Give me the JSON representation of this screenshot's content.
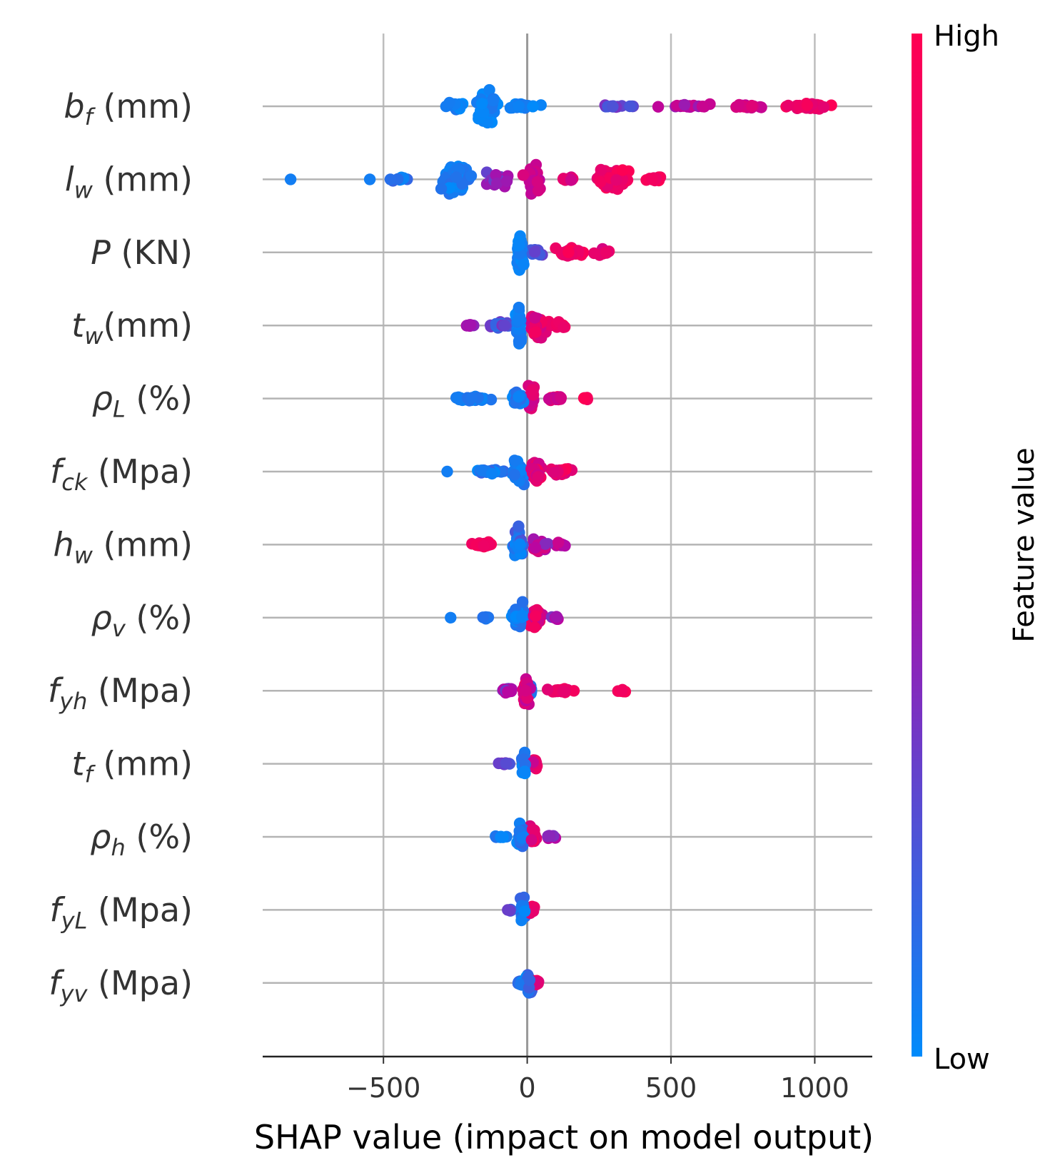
{
  "chart_data": {
    "type": "scatter",
    "subtype": "shap-beeswarm",
    "xlabel": "SHAP value (impact on model output)",
    "xticks": [
      -500,
      0,
      500,
      1000
    ],
    "xtick_labels": [
      "−500",
      "0",
      "500",
      "1000"
    ],
    "xlim": [
      -920,
      1200
    ],
    "vertical_gridlines": [
      -500,
      0,
      500,
      1000
    ],
    "colorbar": {
      "label": "Feature value",
      "high_label": "High",
      "low_label": "Low",
      "low_color": "#008bfb",
      "mid_color": "#b407a6",
      "high_color": "#ff0052"
    },
    "features": [
      {
        "main": "b",
        "sub": "f",
        "suffix": " (mm)",
        "clusters": [
          {
            "center": -140,
            "count": 70,
            "spread": 40,
            "vmin": 0.0,
            "vmax": 0.08,
            "height": 0.7
          },
          {
            "center": -240,
            "count": 16,
            "spread": 50,
            "vmin": 0.0,
            "vmax": 0.08,
            "height": 0.15
          },
          {
            "center": -20,
            "count": 24,
            "spread": 75,
            "vmin": 0.0,
            "vmax": 0.12,
            "height": 0.15
          },
          {
            "center": 300,
            "count": 16,
            "spread": 75,
            "vmin": 0.15,
            "vmax": 0.35,
            "height": 0.05
          },
          {
            "center": 580,
            "count": 16,
            "spread": 110,
            "vmin": 0.4,
            "vmax": 0.7,
            "height": 0.1
          },
          {
            "center": 760,
            "count": 14,
            "spread": 70,
            "vmin": 0.55,
            "vmax": 0.8,
            "height": 0.1
          },
          {
            "center": 980,
            "count": 40,
            "spread": 90,
            "vmin": 0.8,
            "vmax": 1.0,
            "height": 0.15
          }
        ]
      },
      {
        "main": "l",
        "sub": "w",
        "suffix": " (mm)",
        "clusters": [
          {
            "center": -820,
            "count": 1,
            "spread": 5,
            "vmin": 0.05,
            "vmax": 0.05,
            "height": 0.0
          },
          {
            "center": -550,
            "count": 1,
            "spread": 5,
            "vmin": 0.05,
            "vmax": 0.05,
            "height": 0.0
          },
          {
            "center": -450,
            "count": 8,
            "spread": 45,
            "vmin": 0.0,
            "vmax": 0.15,
            "height": 0.1
          },
          {
            "center": -250,
            "count": 85,
            "spread": 50,
            "vmin": 0.0,
            "vmax": 0.12,
            "height": 0.75
          },
          {
            "center": -100,
            "count": 30,
            "spread": 50,
            "vmin": 0.25,
            "vmax": 0.55,
            "height": 0.4
          },
          {
            "center": 20,
            "count": 40,
            "spread": 35,
            "vmin": 0.55,
            "vmax": 0.75,
            "height": 0.7
          },
          {
            "center": 140,
            "count": 10,
            "spread": 40,
            "vmin": 0.65,
            "vmax": 0.85,
            "height": 0.1
          },
          {
            "center": 300,
            "count": 75,
            "spread": 60,
            "vmin": 0.8,
            "vmax": 1.0,
            "height": 0.45
          },
          {
            "center": 450,
            "count": 12,
            "spread": 40,
            "vmin": 0.85,
            "vmax": 1.0,
            "height": 0.1
          }
        ]
      },
      {
        "main": "P",
        "sub": "",
        "suffix": "  (KN)",
        "clusters": [
          {
            "center": -25,
            "count": 55,
            "spread": 12,
            "vmin": 0.0,
            "vmax": 0.08,
            "height": 0.8
          },
          {
            "center": 30,
            "count": 16,
            "spread": 25,
            "vmin": 0.1,
            "vmax": 0.3,
            "height": 0.15
          },
          {
            "center": 150,
            "count": 40,
            "spread": 55,
            "vmin": 0.8,
            "vmax": 1.0,
            "height": 0.2
          },
          {
            "center": 270,
            "count": 14,
            "spread": 40,
            "vmin": 0.7,
            "vmax": 0.95,
            "height": 0.15
          }
        ]
      },
      {
        "main": "t",
        "sub": "w",
        "suffix": "(mm)",
        "clusters": [
          {
            "center": -200,
            "count": 8,
            "spread": 25,
            "vmin": 0.35,
            "vmax": 0.5,
            "height": 0.05
          },
          {
            "center": -90,
            "count": 20,
            "spread": 40,
            "vmin": 0.1,
            "vmax": 0.35,
            "height": 0.15
          },
          {
            "center": -30,
            "count": 40,
            "spread": 14,
            "vmin": 0.0,
            "vmax": 0.1,
            "height": 0.75
          },
          {
            "center": 40,
            "count": 45,
            "spread": 35,
            "vmin": 0.6,
            "vmax": 0.95,
            "height": 0.45
          },
          {
            "center": 110,
            "count": 18,
            "spread": 25,
            "vmin": 0.85,
            "vmax": 1.0,
            "height": 0.15
          }
        ]
      },
      {
        "main": "ρ",
        "sub": "L",
        "suffix": " (%)",
        "clusters": [
          {
            "center": -200,
            "count": 34,
            "spread": 70,
            "vmin": 0.0,
            "vmax": 0.1,
            "height": 0.12
          },
          {
            "center": -30,
            "count": 34,
            "spread": 30,
            "vmin": 0.0,
            "vmax": 0.15,
            "height": 0.3
          },
          {
            "center": 15,
            "count": 30,
            "spread": 12,
            "vmin": 0.6,
            "vmax": 0.85,
            "height": 0.7
          },
          {
            "center": 110,
            "count": 22,
            "spread": 45,
            "vmin": 0.55,
            "vmax": 1.0,
            "height": 0.12
          },
          {
            "center": 200,
            "count": 8,
            "spread": 15,
            "vmin": 0.9,
            "vmax": 1.0,
            "height": 0.05
          }
        ]
      },
      {
        "main": "f",
        "sub": "ck",
        "suffix": " (Mpa)",
        "clusters": [
          {
            "center": -280,
            "count": 1,
            "spread": 5,
            "vmin": 0.05,
            "vmax": 0.05,
            "height": 0.0
          },
          {
            "center": -130,
            "count": 26,
            "spread": 50,
            "vmin": 0.0,
            "vmax": 0.2,
            "height": 0.12
          },
          {
            "center": -30,
            "count": 40,
            "spread": 25,
            "vmin": 0.0,
            "vmax": 0.1,
            "height": 0.65
          },
          {
            "center": 30,
            "count": 36,
            "spread": 25,
            "vmin": 0.65,
            "vmax": 0.95,
            "height": 0.6
          },
          {
            "center": 110,
            "count": 30,
            "spread": 40,
            "vmin": 0.7,
            "vmax": 1.0,
            "height": 0.15
          }
        ]
      },
      {
        "main": "h",
        "sub": "w",
        "suffix": " (mm)",
        "clusters": [
          {
            "center": -150,
            "count": 28,
            "spread": 40,
            "vmin": 0.85,
            "vmax": 1.0,
            "height": 0.1
          },
          {
            "center": -30,
            "count": 50,
            "spread": 20,
            "vmin": 0.0,
            "vmax": 0.25,
            "height": 0.75
          },
          {
            "center": 40,
            "count": 34,
            "spread": 30,
            "vmin": 0.35,
            "vmax": 0.8,
            "height": 0.35
          },
          {
            "center": 110,
            "count": 14,
            "spread": 22,
            "vmin": 0.4,
            "vmax": 0.7,
            "height": 0.1
          }
        ]
      },
      {
        "main": "ρ",
        "sub": "v",
        "suffix": " (%)",
        "clusters": [
          {
            "center": -265,
            "count": 1,
            "spread": 5,
            "vmin": 0.05,
            "vmax": 0.05,
            "height": 0.0
          },
          {
            "center": -150,
            "count": 4,
            "spread": 20,
            "vmin": 0.05,
            "vmax": 0.1,
            "height": 0.05
          },
          {
            "center": -30,
            "count": 45,
            "spread": 25,
            "vmin": 0.0,
            "vmax": 0.12,
            "height": 0.6
          },
          {
            "center": 30,
            "count": 40,
            "spread": 25,
            "vmin": 0.6,
            "vmax": 0.95,
            "height": 0.4
          },
          {
            "center": 100,
            "count": 10,
            "spread": 20,
            "vmin": 0.3,
            "vmax": 0.55,
            "height": 0.1
          }
        ]
      },
      {
        "main": "f",
        "sub": "yh",
        "suffix": " (Mpa)",
        "clusters": [
          {
            "center": -70,
            "count": 20,
            "spread": 25,
            "vmin": 0.3,
            "vmax": 0.6,
            "height": 0.15
          },
          {
            "center": -5,
            "count": 40,
            "spread": 14,
            "vmin": 0.5,
            "vmax": 0.9,
            "height": 0.7
          },
          {
            "center": 10,
            "count": 14,
            "spread": 10,
            "vmin": 0.0,
            "vmax": 0.15,
            "height": 0.4
          },
          {
            "center": 120,
            "count": 24,
            "spread": 45,
            "vmin": 0.8,
            "vmax": 1.0,
            "height": 0.1
          },
          {
            "center": 330,
            "count": 8,
            "spread": 25,
            "vmin": 0.9,
            "vmax": 1.0,
            "height": 0.05
          }
        ]
      },
      {
        "main": "t",
        "sub": "f",
        "suffix": " (mm)",
        "clusters": [
          {
            "center": -80,
            "count": 8,
            "spread": 25,
            "vmin": 0.2,
            "vmax": 0.4,
            "height": 0.05
          },
          {
            "center": -10,
            "count": 34,
            "spread": 10,
            "vmin": 0.0,
            "vmax": 0.12,
            "height": 0.6
          },
          {
            "center": 25,
            "count": 20,
            "spread": 12,
            "vmin": 0.6,
            "vmax": 0.95,
            "height": 0.2
          }
        ]
      },
      {
        "main": "ρ",
        "sub": "h",
        "suffix": " (%)",
        "clusters": [
          {
            "center": -90,
            "count": 8,
            "spread": 25,
            "vmin": 0.0,
            "vmax": 0.1,
            "height": 0.05
          },
          {
            "center": -20,
            "count": 36,
            "spread": 15,
            "vmin": 0.0,
            "vmax": 0.15,
            "height": 0.55
          },
          {
            "center": 20,
            "count": 30,
            "spread": 15,
            "vmin": 0.7,
            "vmax": 1.0,
            "height": 0.55
          },
          {
            "center": 80,
            "count": 10,
            "spread": 18,
            "vmin": 0.3,
            "vmax": 0.6,
            "height": 0.1
          }
        ]
      },
      {
        "main": "f",
        "sub": "yL",
        "suffix": " (Mpa)",
        "clusters": [
          {
            "center": -60,
            "count": 6,
            "spread": 15,
            "vmin": 0.1,
            "vmax": 0.3,
            "height": 0.05
          },
          {
            "center": -15,
            "count": 30,
            "spread": 10,
            "vmin": 0.0,
            "vmax": 0.15,
            "height": 0.6
          },
          {
            "center": 15,
            "count": 26,
            "spread": 12,
            "vmin": 0.7,
            "vmax": 1.0,
            "height": 0.2
          }
        ]
      },
      {
        "main": "f",
        "sub": "yv",
        "suffix": " (Mpa)",
        "clusters": [
          {
            "center": -25,
            "count": 10,
            "spread": 10,
            "vmin": 0.0,
            "vmax": 0.15,
            "height": 0.1
          },
          {
            "center": 5,
            "count": 30,
            "spread": 10,
            "vmin": 0.0,
            "vmax": 0.25,
            "height": 0.55
          },
          {
            "center": 30,
            "count": 20,
            "spread": 14,
            "vmin": 0.7,
            "vmax": 1.0,
            "height": 0.15
          }
        ]
      }
    ]
  }
}
